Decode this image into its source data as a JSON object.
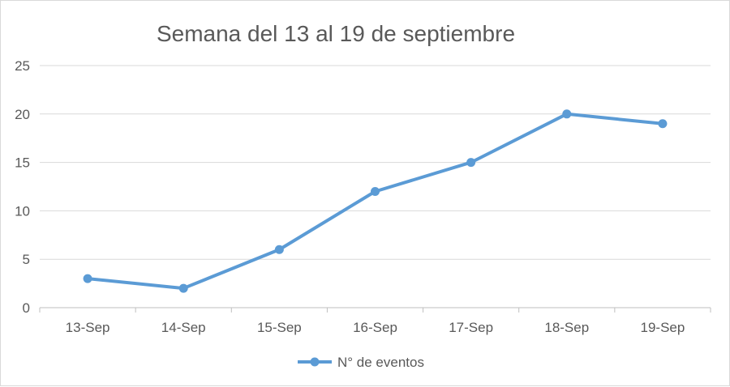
{
  "chart_data": {
    "type": "line",
    "title": "Semana del 13 al 19 de septiembre",
    "categories": [
      "13-Sep",
      "14-Sep",
      "15-Sep",
      "16-Sep",
      "17-Sep",
      "18-Sep",
      "19-Sep"
    ],
    "series": [
      {
        "name": "N° de eventos",
        "values": [
          3,
          2,
          6,
          12,
          15,
          20,
          19
        ],
        "color": "#5B9BD5"
      }
    ],
    "ylim": [
      0,
      25
    ],
    "yticks": [
      0,
      5,
      10,
      15,
      20,
      25
    ],
    "grid": true,
    "legend_position": "bottom"
  }
}
